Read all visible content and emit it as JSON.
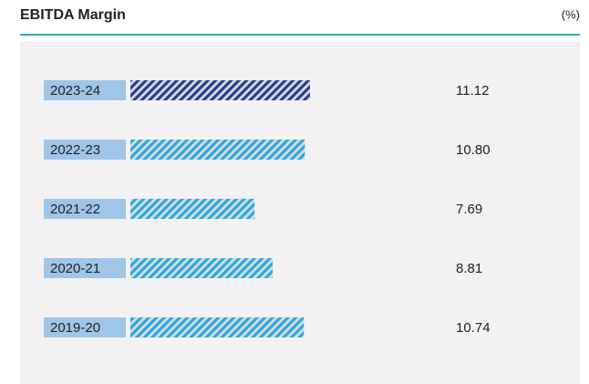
{
  "chart_data": {
    "type": "hbar",
    "title": "EBITDA Margin",
    "unit_label": "(%)",
    "categories": [
      "2023-24",
      "2022-23",
      "2021-22",
      "2020-21",
      "2019-20"
    ],
    "values": [
      11.12,
      10.8,
      7.69,
      8.81,
      10.74
    ],
    "value_labels": [
      "11.12",
      "10.80",
      "7.69",
      "8.81",
      "10.74"
    ],
    "colors": [
      "#2b3d8c",
      "#2aa9e0",
      "#2aa9e0",
      "#2aa9e0",
      "#2aa9e0"
    ]
  }
}
